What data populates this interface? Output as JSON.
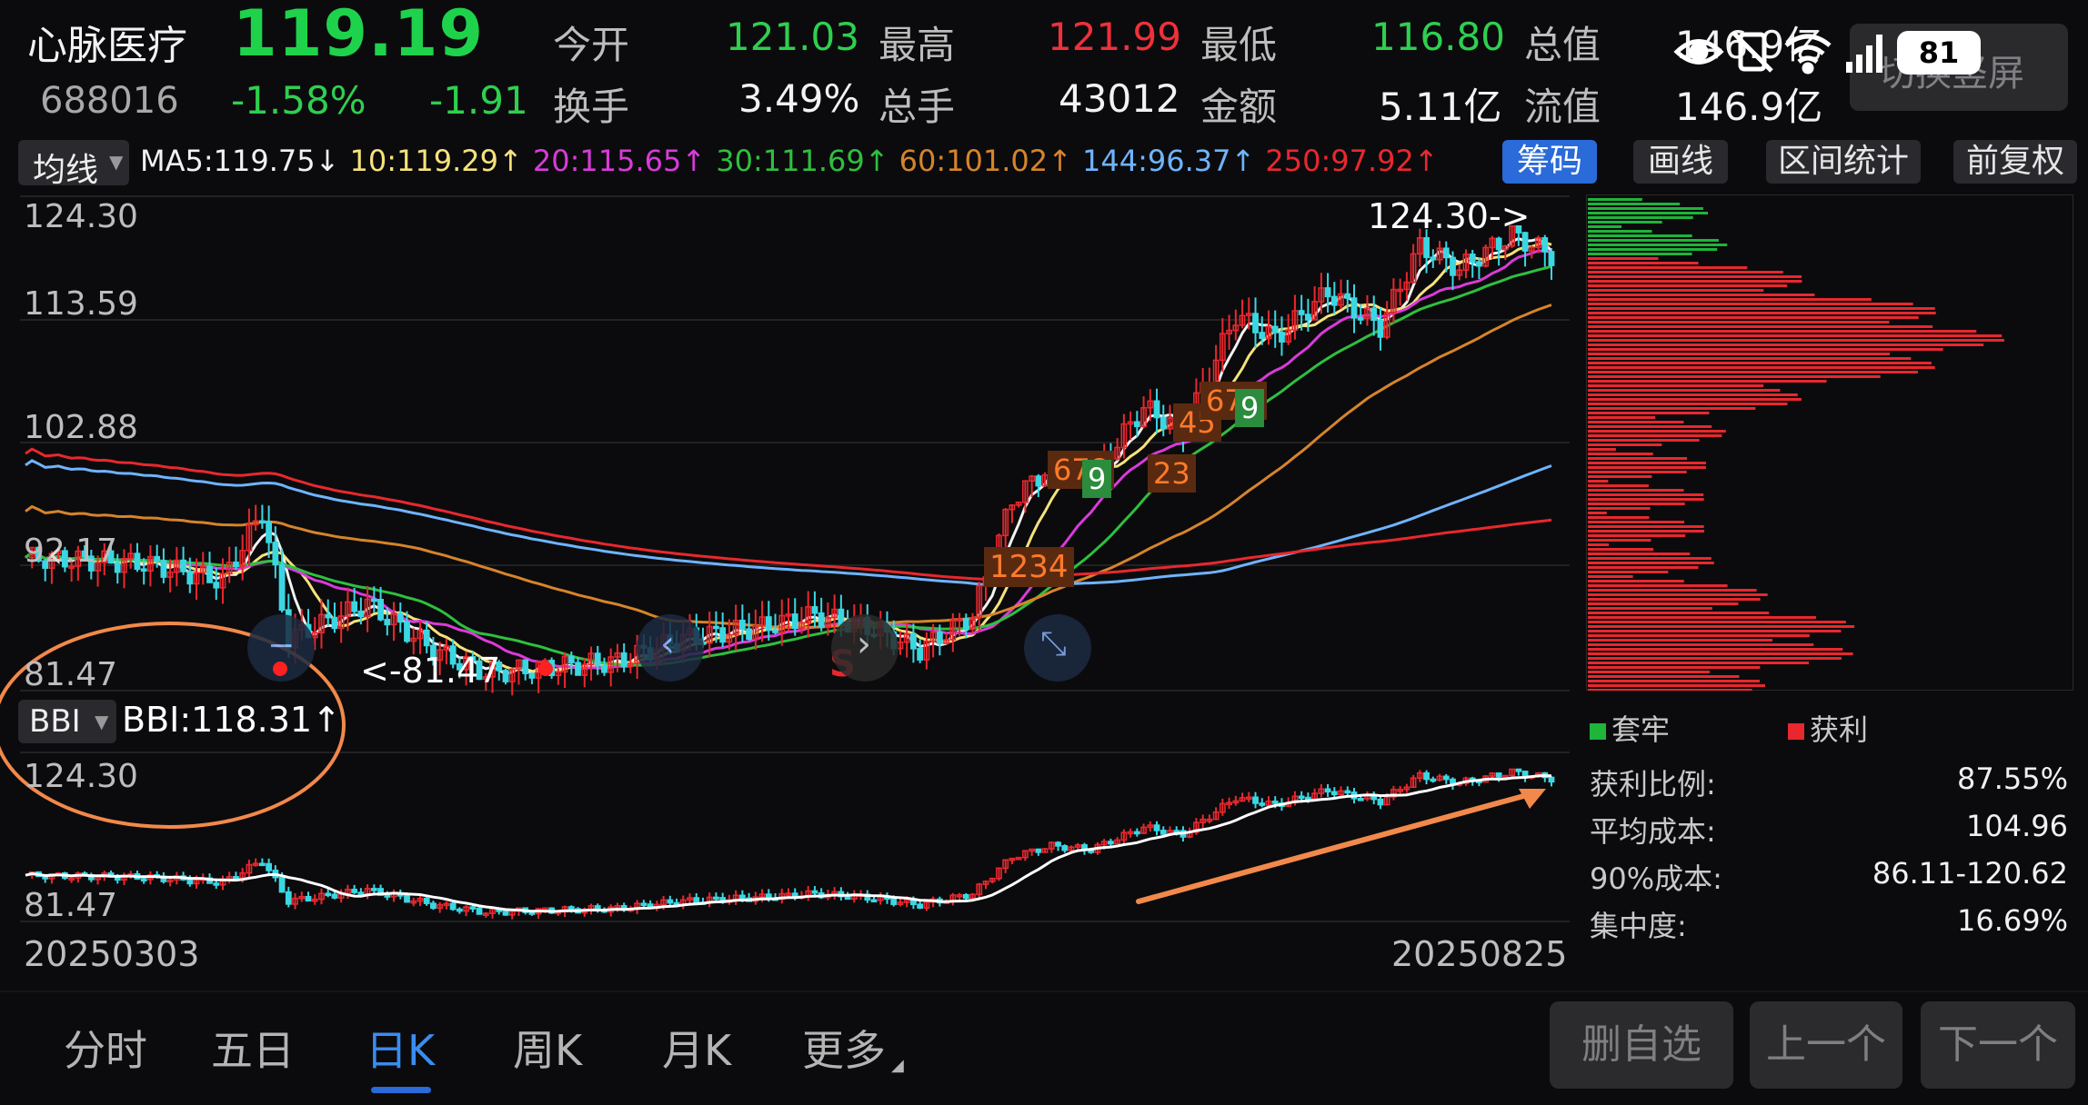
{
  "header": {
    "stock_name": "心脉医疗",
    "price": "119.19",
    "code": "688016",
    "change_pct": "-1.58%",
    "change_abs": "-1.91",
    "quotes": [
      {
        "label": "今开",
        "value": "121.03",
        "tone": "green"
      },
      {
        "label": "最高",
        "value": "121.99",
        "tone": "red"
      },
      {
        "label": "最低",
        "value": "116.80",
        "tone": "green"
      },
      {
        "label": "总值",
        "value": "146.9亿",
        "tone": "white"
      },
      {
        "label": "换手",
        "value": "3.49%",
        "tone": "white"
      },
      {
        "label": "总手",
        "value": "43012",
        "tone": "white"
      },
      {
        "label": "金额",
        "value": "5.11亿",
        "tone": "white"
      },
      {
        "label": "流值",
        "value": "146.9亿",
        "tone": "white"
      }
    ],
    "fullscreen_label": "切换竖屏",
    "battery": "81"
  },
  "ma_bar": {
    "selector": "均线",
    "items": [
      {
        "text": "MA5:119.75↓",
        "color": "#f2f2f2"
      },
      {
        "text": "10:119.29↑",
        "color": "#f5e27a"
      },
      {
        "text": "20:115.65↑",
        "color": "#d93bd9"
      },
      {
        "text": "30:111.69↑",
        "color": "#2fbf3f"
      },
      {
        "text": "60:101.02↑",
        "color": "#d6842b"
      },
      {
        "text": "144:96.37↑",
        "color": "#6fb4ff"
      },
      {
        "text": "250:97.92↑",
        "color": "#e8282e"
      }
    ],
    "buttons": [
      "筹码",
      "画线",
      "区间统计",
      "前复权"
    ]
  },
  "main_chart": {
    "y_labels": [
      "124.30",
      "113.59",
      "102.88",
      "92.17",
      "81.47"
    ],
    "high_marker": "124.30->",
    "low_marker": "<-81.47",
    "signal_s": "S"
  },
  "sub_chart": {
    "selector": "BBI",
    "value": "BBI:118.31↑",
    "y_top": "124.30",
    "y_bottom": "81.47",
    "date_start": "20250303",
    "date_end": "20250825"
  },
  "chip_panel": {
    "legend_loss": "套牢",
    "legend_profit": "获利",
    "stats": [
      {
        "label": "获利比例:",
        "value": "87.55%"
      },
      {
        "label": "平均成本:",
        "value": "104.96"
      },
      {
        "label": "90%成本:",
        "value": "86.11-120.62"
      },
      {
        "label": "集中度:",
        "value": "16.69%"
      }
    ]
  },
  "bottom_tabs": [
    "分时",
    "五日",
    "日K",
    "周K",
    "月K",
    "更多"
  ],
  "bottom_buttons": [
    "删自选",
    "上一个",
    "下一个"
  ],
  "colors": {
    "up": "#e8282e",
    "down": "#3ad7e3",
    "accent": "#2a6ad9",
    "annotation": "#f2894a"
  }
}
